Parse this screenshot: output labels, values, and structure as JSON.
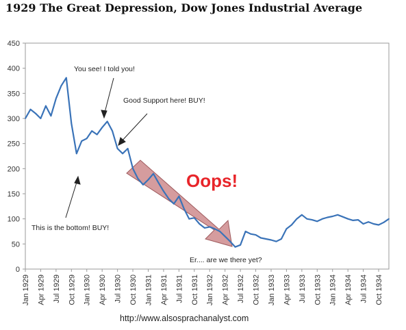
{
  "title": "1929 The Great Depression, Dow Jones Industrial Average",
  "source": "http://www.alsosprachanalyst.com",
  "chart_data": {
    "type": "line",
    "title": "1929 The Great Depression, Dow Jones Industrial Average",
    "xlabel": "",
    "ylabel": "",
    "ylim": [
      0,
      450
    ],
    "yticks": [
      0,
      50,
      100,
      150,
      200,
      250,
      300,
      350,
      400,
      450
    ],
    "xlim": [
      "1929-01",
      "1934-12"
    ],
    "xticks": [
      "Jan 1929",
      "Apr 1929",
      "Jul 1929",
      "Oct 1929",
      "Jan 1930",
      "Apr 1930",
      "Jul 1930",
      "Oct 1930",
      "Jan 1931",
      "Apr 1931",
      "Jul 1931",
      "Oct 1931",
      "Jan 1932",
      "Apr 1932",
      "Jul 1932",
      "Oct 1932",
      "Jan 1933",
      "Apr 1933",
      "Jul 1933",
      "Oct 1933",
      "Jan 1934",
      "Apr 1934",
      "Jul 1934",
      "Oct 1934"
    ],
    "grid": false,
    "legend": "none",
    "line_color": "#3a73b8",
    "series": [
      {
        "x": [
          "1929-01",
          "1929-02",
          "1929-03",
          "1929-04",
          "1929-05",
          "1929-06",
          "1929-07",
          "1929-08",
          "1929-09",
          "1929-10",
          "1929-11",
          "1929-12",
          "1930-01",
          "1930-02",
          "1930-03",
          "1930-04",
          "1930-05",
          "1930-06",
          "1930-07",
          "1930-08",
          "1930-09",
          "1930-10",
          "1930-11",
          "1930-12",
          "1931-01",
          "1931-02",
          "1931-03",
          "1931-04",
          "1931-05",
          "1931-06",
          "1931-07",
          "1931-08",
          "1931-09",
          "1931-10",
          "1931-11",
          "1931-12",
          "1932-01",
          "1932-02",
          "1932-03",
          "1932-04",
          "1932-05",
          "1932-06",
          "1932-07",
          "1932-08",
          "1932-09",
          "1932-10",
          "1932-11",
          "1932-12",
          "1933-01",
          "1933-02",
          "1933-03",
          "1933-04",
          "1933-05",
          "1933-06",
          "1933-07",
          "1933-08",
          "1933-09",
          "1933-10",
          "1933-11",
          "1933-12",
          "1934-01",
          "1934-02",
          "1934-03",
          "1934-04",
          "1934-05",
          "1934-06",
          "1934-07",
          "1934-08",
          "1934-09",
          "1934-10",
          "1934-11",
          "1934-12"
        ],
        "values": [
          300,
          318,
          310,
          300,
          325,
          305,
          340,
          365,
          381,
          290,
          230,
          255,
          260,
          275,
          268,
          282,
          294,
          275,
          240,
          230,
          240,
          200,
          180,
          168,
          178,
          190,
          172,
          155,
          140,
          130,
          145,
          120,
          100,
          102,
          90,
          82,
          84,
          80,
          75,
          65,
          55,
          44,
          48,
          75,
          70,
          68,
          62,
          60,
          58,
          55,
          60,
          80,
          88,
          100,
          108,
          100,
          98,
          95,
          100,
          103,
          105,
          108,
          104,
          100,
          97,
          98,
          90,
          94,
          90,
          88,
          93,
          100
        ]
      }
    ],
    "annotations": [
      {
        "text": "You see! I told you!",
        "x": "1930-04",
        "y": 294
      },
      {
        "text": "Good Support here! BUY!",
        "x": "1930-09",
        "y": 240
      },
      {
        "text": "This is the bottom! BUY!",
        "x": "1929-11",
        "y": 200
      },
      {
        "text": "Er.... are we there yet?",
        "x": "1932-07",
        "y": 44
      },
      {
        "text": "Oops!",
        "x": "1932-02",
        "y": 180
      }
    ]
  }
}
